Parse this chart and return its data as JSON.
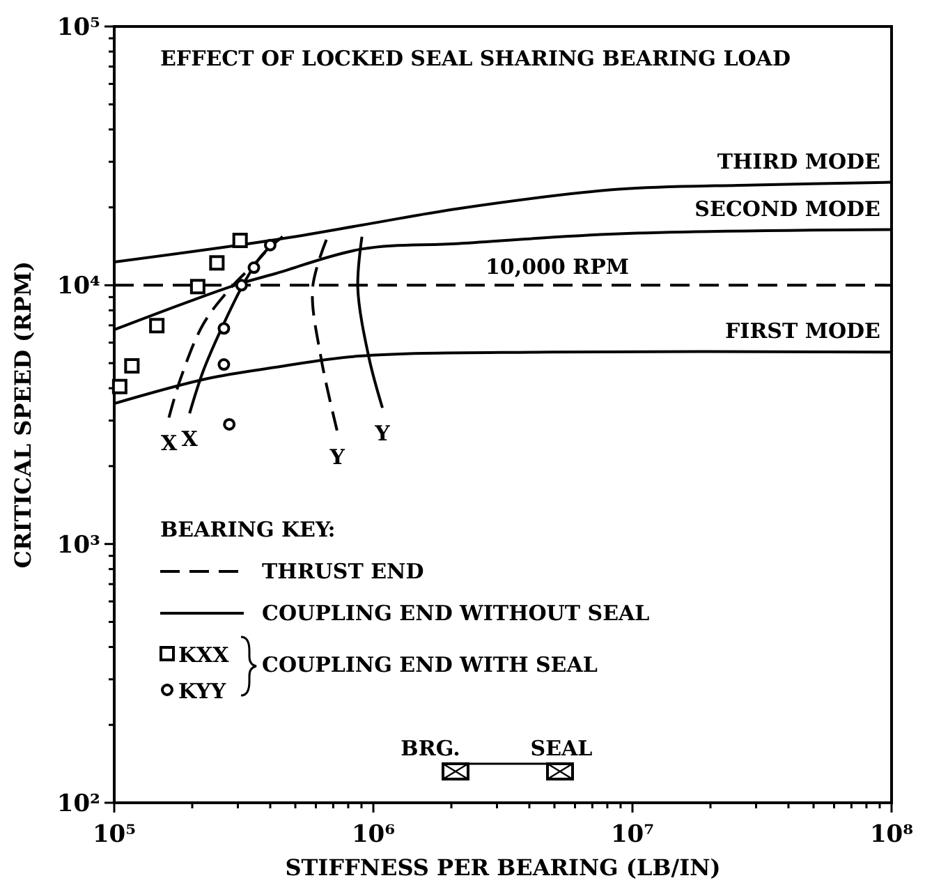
{
  "chart_data": {
    "type": "line",
    "title": "EFFECT OF LOCKED SEAL SHARING BEARING LOAD",
    "xlabel": "STIFFNESS PER BEARING (LB/IN)",
    "ylabel": "CRITICAL SPEED (RPM)",
    "legend_title": "BEARING KEY:",
    "log": "xy",
    "grid": false,
    "legend": "bottom left",
    "xlim": [
      100000,
      100000000
    ],
    "ylim": [
      100,
      100000
    ],
    "xticks": [
      {
        "value": 100000,
        "label": "10⁵"
      },
      {
        "value": 200000,
        "label": null
      },
      {
        "value": 300000,
        "label": null
      },
      {
        "value": 400000,
        "label": null
      },
      {
        "value": 500000,
        "label": null
      },
      {
        "value": 600000,
        "label": null
      },
      {
        "value": 700000,
        "label": null
      },
      {
        "value": 800000,
        "label": null
      },
      {
        "value": 900000,
        "label": null
      },
      {
        "value": 1000000,
        "label": "10⁶"
      },
      {
        "value": 2000000,
        "label": null
      },
      {
        "value": 3000000,
        "label": null
      },
      {
        "value": 4000000,
        "label": null
      },
      {
        "value": 5000000,
        "label": null
      },
      {
        "value": 6000000,
        "label": null
      },
      {
        "value": 7000000,
        "label": null
      },
      {
        "value": 8000000,
        "label": null
      },
      {
        "value": 9000000,
        "label": null
      },
      {
        "value": 10000000,
        "label": "10⁷"
      },
      {
        "value": 20000000,
        "label": null
      },
      {
        "value": 30000000,
        "label": null
      },
      {
        "value": 40000000,
        "label": null
      },
      {
        "value": 50000000,
        "label": null
      },
      {
        "value": 60000000,
        "label": null
      },
      {
        "value": 70000000,
        "label": null
      },
      {
        "value": 80000000,
        "label": null
      },
      {
        "value": 90000000,
        "label": null
      },
      {
        "value": 100000000,
        "label": "10⁸"
      }
    ],
    "yticks": [
      {
        "value": 100,
        "label": "10²"
      },
      {
        "value": 200,
        "label": null
      },
      {
        "value": 300,
        "label": null
      },
      {
        "value": 400,
        "label": null
      },
      {
        "value": 500,
        "label": null
      },
      {
        "value": 600,
        "label": null
      },
      {
        "value": 700,
        "label": null
      },
      {
        "value": 800,
        "label": null
      },
      {
        "value": 900,
        "label": null
      },
      {
        "value": 1000,
        "label": "10³"
      },
      {
        "value": 2000,
        "label": null
      },
      {
        "value": 3000,
        "label": null
      },
      {
        "value": 4000,
        "label": null
      },
      {
        "value": 5000,
        "label": null
      },
      {
        "value": 6000,
        "label": null
      },
      {
        "value": 7000,
        "label": null
      },
      {
        "value": 8000,
        "label": null
      },
      {
        "value": 9000,
        "label": null
      },
      {
        "value": 10000,
        "label": "10⁴"
      },
      {
        "value": 20000,
        "label": null
      },
      {
        "value": 30000,
        "label": null
      },
      {
        "value": 40000,
        "label": null
      },
      {
        "value": 50000,
        "label": null
      },
      {
        "value": 60000,
        "label": null
      },
      {
        "value": 70000,
        "label": null
      },
      {
        "value": 80000,
        "label": null
      },
      {
        "value": 90000,
        "label": null
      },
      {
        "value": 100000,
        "label": "10⁵"
      }
    ],
    "series": [
      {
        "name": "FIRST MODE",
        "color": "#000000",
        "x": [
          100000,
          229000,
          420000,
          871000,
          4760000,
          100000000
        ],
        "values": [
          3490,
          4360,
          4820,
          5320,
          5520,
          5520
        ]
      },
      {
        "name": "SECOND MODE",
        "color": "#000000",
        "x": [
          100000,
          292000,
          420000,
          900000,
          2140000,
          8850000,
          100000000
        ],
        "values": [
          6730,
          10000,
          11100,
          13800,
          14500,
          15800,
          16400
        ]
      },
      {
        "name": "THIRD MODE",
        "color": "#000000",
        "x": [
          100000,
          420000,
          940000,
          2140000,
          8850000,
          29500000,
          100000000
        ],
        "values": [
          12300,
          15000,
          17200,
          19800,
          23500,
          24400,
          25000
        ]
      },
      {
        "name": "THRUST END",
        "color": "#000000",
        "line_style": "dashed",
        "x": [
          162600,
          179500,
          220300,
          281200,
          358900,
          419800,
          null,
          659000,
          583000,
          628000,
          726000
        ],
        "values": [
          3080,
          4300,
          7060,
          9750,
          12500,
          15000,
          null,
          15000,
          9750,
          5250,
          2720
        ]
      },
      {
        "name": "COUPLING END WITHOUT SEAL",
        "color": "#000000",
        "line_style": "solid",
        "x": [
          195400,
          220300,
          258200,
          317700,
          372400,
          446700,
          null,
          903600,
          871000,
          961600,
          1084000
        ],
        "values": [
          3200,
          4650,
          6730,
          10250,
          13100,
          15400,
          null,
          15400,
          9750,
          5250,
          3360
        ]
      },
      {
        "type": "scatter",
        "name": "KXX",
        "color": "#000000",
        "marker": "square",
        "x": [
          105000,
          117000,
          146000,
          210000,
          249000,
          306000
        ],
        "values": [
          4060,
          4880,
          6980,
          9880,
          12200,
          14900
        ]
      },
      {
        "type": "scatter",
        "name": "KYY",
        "color": "#000000",
        "marker": "circle",
        "x": [
          265000,
          265000,
          278000,
          310000,
          346000,
          400000
        ],
        "values": [
          6810,
          4940,
          2900,
          10000,
          11700,
          14300
        ]
      }
    ],
    "ref_lines": [
      {
        "axis": "y",
        "value": 10000,
        "label": "10,000 RPM",
        "line_style": "dashed",
        "color": "#000000"
      }
    ],
    "annotations": [
      "X",
      "X",
      "Y",
      "Y",
      "COUPLING END WITH SEAL",
      "BRG.",
      "SEAL"
    ]
  }
}
